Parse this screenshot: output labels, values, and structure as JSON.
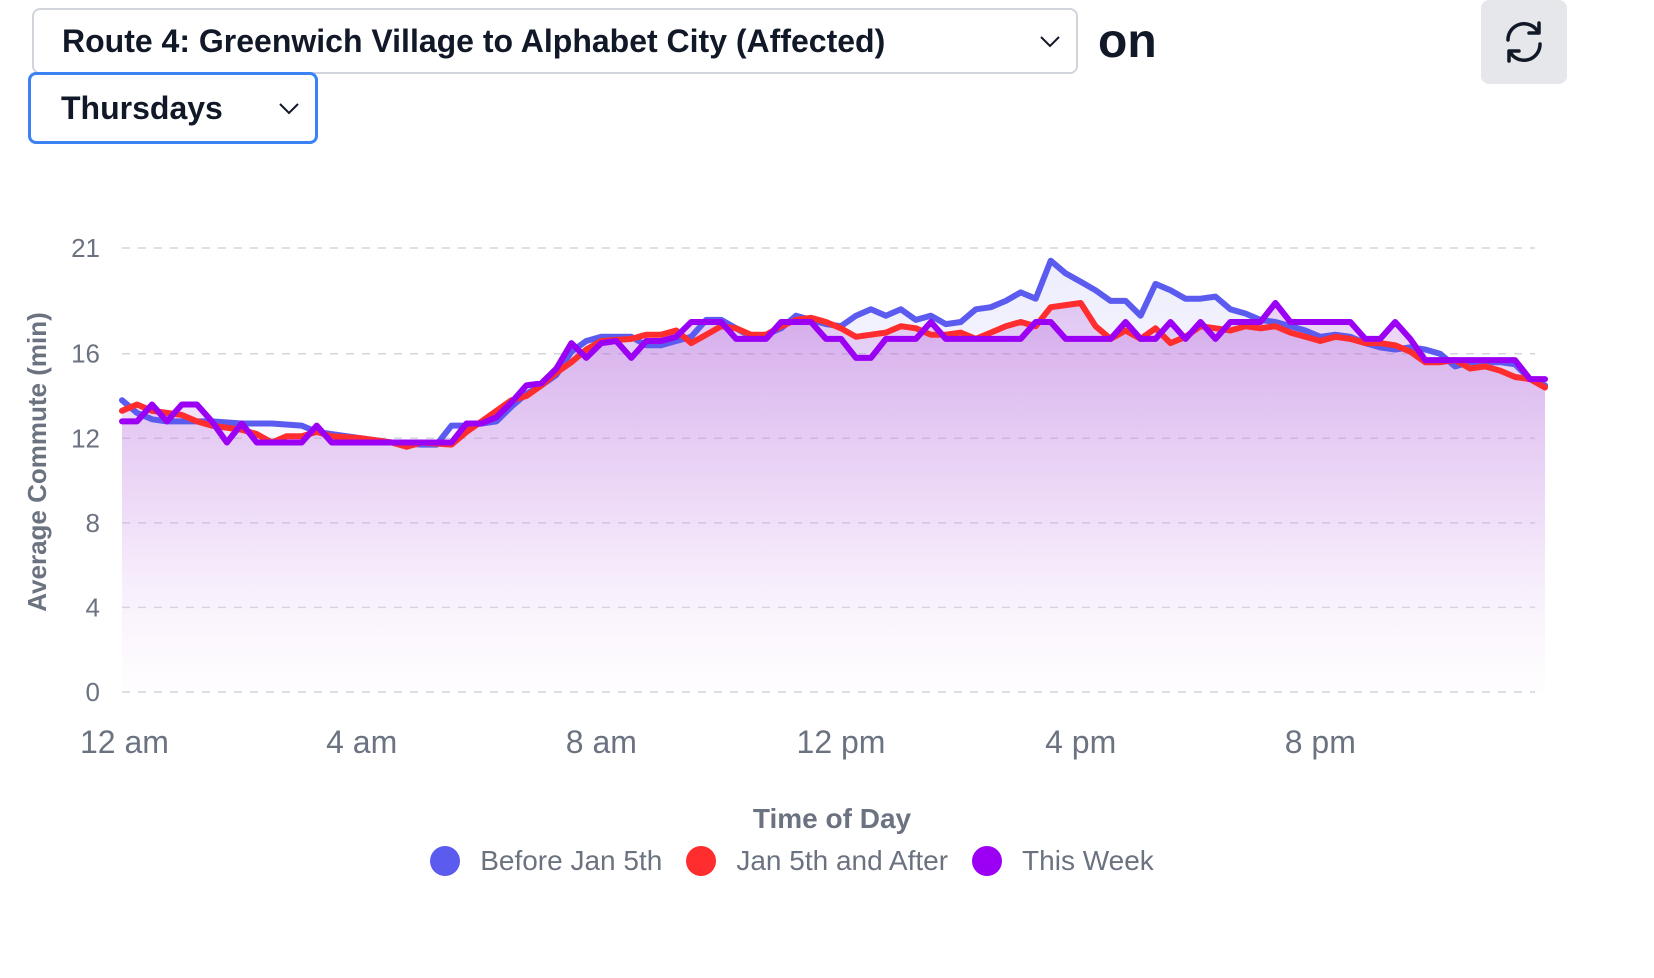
{
  "route_select": {
    "value": "Route 4: Greenwich Village to Alphabet City (Affected)"
  },
  "on_label": "on",
  "day_select": {
    "value": "Thursdays"
  },
  "refresh": {
    "icon": "refresh-icon"
  },
  "colors": {
    "before": "#5b5bf0",
    "after": "#ff2d2d",
    "this_week": "#9b00f5",
    "grid": "#d1d5db",
    "text": "#6b7280"
  },
  "chart_data": {
    "type": "line",
    "title": "",
    "xlabel": "Time of Day",
    "ylabel": "Average Commute (min)",
    "x_unit": "hours",
    "xlim": [
      0,
      23.75
    ],
    "ylim": [
      0,
      21
    ],
    "y_ticks": [
      0,
      4,
      8,
      12,
      16,
      21
    ],
    "x_ticks": [
      {
        "value": 0,
        "label": "12 am"
      },
      {
        "value": 4,
        "label": "4 am"
      },
      {
        "value": 8,
        "label": "8 am"
      },
      {
        "value": 12,
        "label": "12 pm"
      },
      {
        "value": 16,
        "label": "4 pm"
      },
      {
        "value": 20,
        "label": "8 pm"
      }
    ],
    "grid": true,
    "legend_position": "bottom",
    "series": [
      {
        "name": "Before Jan 5th",
        "color": "#5b5bf0",
        "points": [
          [
            0,
            13.8
          ],
          [
            0.25,
            13.2
          ],
          [
            0.5,
            12.9
          ],
          [
            0.75,
            12.8
          ],
          [
            1,
            12.8
          ],
          [
            1.5,
            12.8
          ],
          [
            2,
            12.7
          ],
          [
            2.5,
            12.7
          ],
          [
            3,
            12.6
          ],
          [
            3.25,
            12.3
          ],
          [
            3.5,
            12.2
          ],
          [
            4,
            12
          ],
          [
            4.5,
            11.8
          ],
          [
            5,
            11.7
          ],
          [
            5.25,
            11.7
          ],
          [
            5.5,
            12.6
          ],
          [
            5.75,
            12.6
          ],
          [
            6,
            12.7
          ],
          [
            6.25,
            12.8
          ],
          [
            6.5,
            13.5
          ],
          [
            6.75,
            14.1
          ],
          [
            7,
            14.5
          ],
          [
            7.25,
            15
          ],
          [
            7.5,
            16.1
          ],
          [
            7.75,
            16.6
          ],
          [
            8,
            16.8
          ],
          [
            8.5,
            16.8
          ],
          [
            8.75,
            16.4
          ],
          [
            9,
            16.4
          ],
          [
            9.25,
            16.6
          ],
          [
            9.5,
            16.8
          ],
          [
            9.75,
            17.6
          ],
          [
            10,
            17.6
          ],
          [
            10.25,
            17.2
          ],
          [
            10.5,
            16.8
          ],
          [
            10.75,
            16.9
          ],
          [
            11,
            17.2
          ],
          [
            11.25,
            17.8
          ],
          [
            11.5,
            17.6
          ],
          [
            11.75,
            17.4
          ],
          [
            12,
            17.3
          ],
          [
            12.25,
            17.8
          ],
          [
            12.5,
            18.1
          ],
          [
            12.75,
            17.8
          ],
          [
            13,
            18.1
          ],
          [
            13.25,
            17.6
          ],
          [
            13.5,
            17.8
          ],
          [
            13.75,
            17.4
          ],
          [
            14,
            17.5
          ],
          [
            14.25,
            18.1
          ],
          [
            14.5,
            18.2
          ],
          [
            14.75,
            18.5
          ],
          [
            15,
            18.9
          ],
          [
            15.25,
            18.6
          ],
          [
            15.5,
            20.4
          ],
          [
            15.75,
            19.8
          ],
          [
            16,
            19.4
          ],
          [
            16.25,
            19
          ],
          [
            16.5,
            18.5
          ],
          [
            16.75,
            18.5
          ],
          [
            17,
            17.8
          ],
          [
            17.25,
            19.3
          ],
          [
            17.5,
            19
          ],
          [
            17.75,
            18.6
          ],
          [
            18,
            18.6
          ],
          [
            18.25,
            18.7
          ],
          [
            18.5,
            18.1
          ],
          [
            18.75,
            17.9
          ],
          [
            19,
            17.6
          ],
          [
            19.25,
            17.5
          ],
          [
            19.5,
            17.3
          ],
          [
            19.75,
            17.1
          ],
          [
            20,
            16.8
          ],
          [
            20.25,
            16.9
          ],
          [
            20.5,
            16.8
          ],
          [
            20.75,
            16.5
          ],
          [
            21,
            16.3
          ],
          [
            21.25,
            16.2
          ],
          [
            21.5,
            16.3
          ],
          [
            21.75,
            16.2
          ],
          [
            22,
            16
          ],
          [
            22.25,
            15.4
          ],
          [
            22.5,
            15.6
          ],
          [
            22.75,
            15.6
          ],
          [
            23,
            15.6
          ],
          [
            23.25,
            15.5
          ],
          [
            23.5,
            14.8
          ],
          [
            23.75,
            14.5
          ]
        ]
      },
      {
        "name": "Jan 5th and After",
        "color": "#ff2d2d",
        "points": [
          [
            0,
            13.3
          ],
          [
            0.25,
            13.6
          ],
          [
            0.5,
            13.3
          ],
          [
            0.75,
            13.2
          ],
          [
            1,
            13.1
          ],
          [
            1.25,
            12.8
          ],
          [
            1.5,
            12.6
          ],
          [
            2,
            12.4
          ],
          [
            2.25,
            12.2
          ],
          [
            2.5,
            11.8
          ],
          [
            2.75,
            12.1
          ],
          [
            3,
            12.1
          ],
          [
            3.25,
            12.3
          ],
          [
            3.5,
            12.1
          ],
          [
            4,
            12
          ],
          [
            4.5,
            11.8
          ],
          [
            4.75,
            11.6
          ],
          [
            5,
            11.8
          ],
          [
            5.5,
            11.7
          ],
          [
            5.75,
            12.3
          ],
          [
            6,
            12.8
          ],
          [
            6.5,
            13.8
          ],
          [
            6.75,
            14
          ],
          [
            7,
            14.5
          ],
          [
            7.25,
            15.1
          ],
          [
            7.5,
            15.6
          ],
          [
            7.75,
            16.2
          ],
          [
            8,
            16.6
          ],
          [
            8.5,
            16.7
          ],
          [
            8.75,
            16.9
          ],
          [
            9,
            16.9
          ],
          [
            9.25,
            17.1
          ],
          [
            9.5,
            16.5
          ],
          [
            9.75,
            16.9
          ],
          [
            10,
            17.3
          ],
          [
            10.25,
            17.2
          ],
          [
            10.5,
            16.9
          ],
          [
            10.75,
            16.9
          ],
          [
            11,
            17.3
          ],
          [
            11.25,
            17.6
          ],
          [
            11.5,
            17.7
          ],
          [
            11.75,
            17.5
          ],
          [
            12,
            17.2
          ],
          [
            12.25,
            16.8
          ],
          [
            12.5,
            16.9
          ],
          [
            12.75,
            17
          ],
          [
            13,
            17.3
          ],
          [
            13.25,
            17.2
          ],
          [
            13.5,
            16.9
          ],
          [
            13.75,
            16.9
          ],
          [
            14,
            17
          ],
          [
            14.25,
            16.7
          ],
          [
            14.5,
            17
          ],
          [
            14.75,
            17.3
          ],
          [
            15,
            17.5
          ],
          [
            15.25,
            17.3
          ],
          [
            15.5,
            18.2
          ],
          [
            15.75,
            18.3
          ],
          [
            16,
            18.4
          ],
          [
            16.25,
            17.3
          ],
          [
            16.5,
            16.7
          ],
          [
            16.75,
            17.1
          ],
          [
            17,
            16.7
          ],
          [
            17.25,
            17.2
          ],
          [
            17.5,
            16.5
          ],
          [
            17.75,
            16.8
          ],
          [
            18,
            17.3
          ],
          [
            18.25,
            17.2
          ],
          [
            18.5,
            17.1
          ],
          [
            18.75,
            17.3
          ],
          [
            19,
            17.2
          ],
          [
            19.25,
            17.3
          ],
          [
            19.5,
            17
          ],
          [
            19.75,
            16.8
          ],
          [
            20,
            16.6
          ],
          [
            20.25,
            16.8
          ],
          [
            20.5,
            16.7
          ],
          [
            20.75,
            16.5
          ],
          [
            21,
            16.5
          ],
          [
            21.25,
            16.4
          ],
          [
            21.5,
            16.1
          ],
          [
            21.75,
            15.6
          ],
          [
            22,
            15.6
          ],
          [
            22.25,
            15.7
          ],
          [
            22.5,
            15.3
          ],
          [
            22.75,
            15.4
          ],
          [
            23,
            15.2
          ],
          [
            23.25,
            14.9
          ],
          [
            23.5,
            14.8
          ],
          [
            23.75,
            14.4
          ]
        ]
      },
      {
        "name": "This Week",
        "color": "#9b00f5",
        "points": [
          [
            0,
            12.8
          ],
          [
            0.25,
            12.8
          ],
          [
            0.5,
            13.6
          ],
          [
            0.75,
            12.8
          ],
          [
            1,
            13.6
          ],
          [
            1.25,
            13.6
          ],
          [
            1.5,
            12.8
          ],
          [
            1.75,
            11.8
          ],
          [
            2,
            12.7
          ],
          [
            2.25,
            11.8
          ],
          [
            2.5,
            11.8
          ],
          [
            2.75,
            11.8
          ],
          [
            3,
            11.8
          ],
          [
            3.25,
            12.6
          ],
          [
            3.5,
            11.8
          ],
          [
            4,
            11.8
          ],
          [
            4.5,
            11.8
          ],
          [
            5,
            11.8
          ],
          [
            5.5,
            11.8
          ],
          [
            5.75,
            12.7
          ],
          [
            6,
            12.7
          ],
          [
            6.25,
            13
          ],
          [
            6.5,
            13.7
          ],
          [
            6.75,
            14.5
          ],
          [
            7,
            14.6
          ],
          [
            7.25,
            15.3
          ],
          [
            7.5,
            16.5
          ],
          [
            7.75,
            15.8
          ],
          [
            8,
            16.5
          ],
          [
            8.25,
            16.6
          ],
          [
            8.5,
            15.8
          ],
          [
            8.75,
            16.6
          ],
          [
            9,
            16.6
          ],
          [
            9.25,
            16.8
          ],
          [
            9.5,
            17.5
          ],
          [
            9.75,
            17.5
          ],
          [
            10,
            17.5
          ],
          [
            10.25,
            16.7
          ],
          [
            10.5,
            16.7
          ],
          [
            10.75,
            16.7
          ],
          [
            11,
            17.5
          ],
          [
            11.25,
            17.5
          ],
          [
            11.5,
            17.5
          ],
          [
            11.75,
            16.7
          ],
          [
            12,
            16.7
          ],
          [
            12.25,
            15.8
          ],
          [
            12.5,
            15.8
          ],
          [
            12.75,
            16.7
          ],
          [
            13,
            16.7
          ],
          [
            13.25,
            16.7
          ],
          [
            13.5,
            17.5
          ],
          [
            13.75,
            16.7
          ],
          [
            14,
            16.7
          ],
          [
            14.25,
            16.7
          ],
          [
            14.5,
            16.7
          ],
          [
            14.75,
            16.7
          ],
          [
            15,
            16.7
          ],
          [
            15.25,
            17.5
          ],
          [
            15.5,
            17.5
          ],
          [
            15.75,
            16.7
          ],
          [
            16,
            16.7
          ],
          [
            16.25,
            16.7
          ],
          [
            16.5,
            16.7
          ],
          [
            16.75,
            17.5
          ],
          [
            17,
            16.7
          ],
          [
            17.25,
            16.7
          ],
          [
            17.5,
            17.5
          ],
          [
            17.75,
            16.7
          ],
          [
            18,
            17.5
          ],
          [
            18.25,
            16.7
          ],
          [
            18.5,
            17.5
          ],
          [
            18.75,
            17.5
          ],
          [
            19,
            17.5
          ],
          [
            19.25,
            18.4
          ],
          [
            19.5,
            17.5
          ],
          [
            19.75,
            17.5
          ],
          [
            20,
            17.5
          ],
          [
            20.25,
            17.5
          ],
          [
            20.5,
            17.5
          ],
          [
            20.75,
            16.7
          ],
          [
            21,
            16.7
          ],
          [
            21.25,
            17.5
          ],
          [
            21.5,
            16.7
          ],
          [
            21.75,
            15.7
          ],
          [
            22,
            15.7
          ],
          [
            22.25,
            15.7
          ],
          [
            22.5,
            15.7
          ],
          [
            22.75,
            15.7
          ],
          [
            23,
            15.7
          ],
          [
            23.25,
            15.7
          ],
          [
            23.5,
            14.8
          ],
          [
            23.75,
            14.8
          ]
        ]
      }
    ]
  }
}
